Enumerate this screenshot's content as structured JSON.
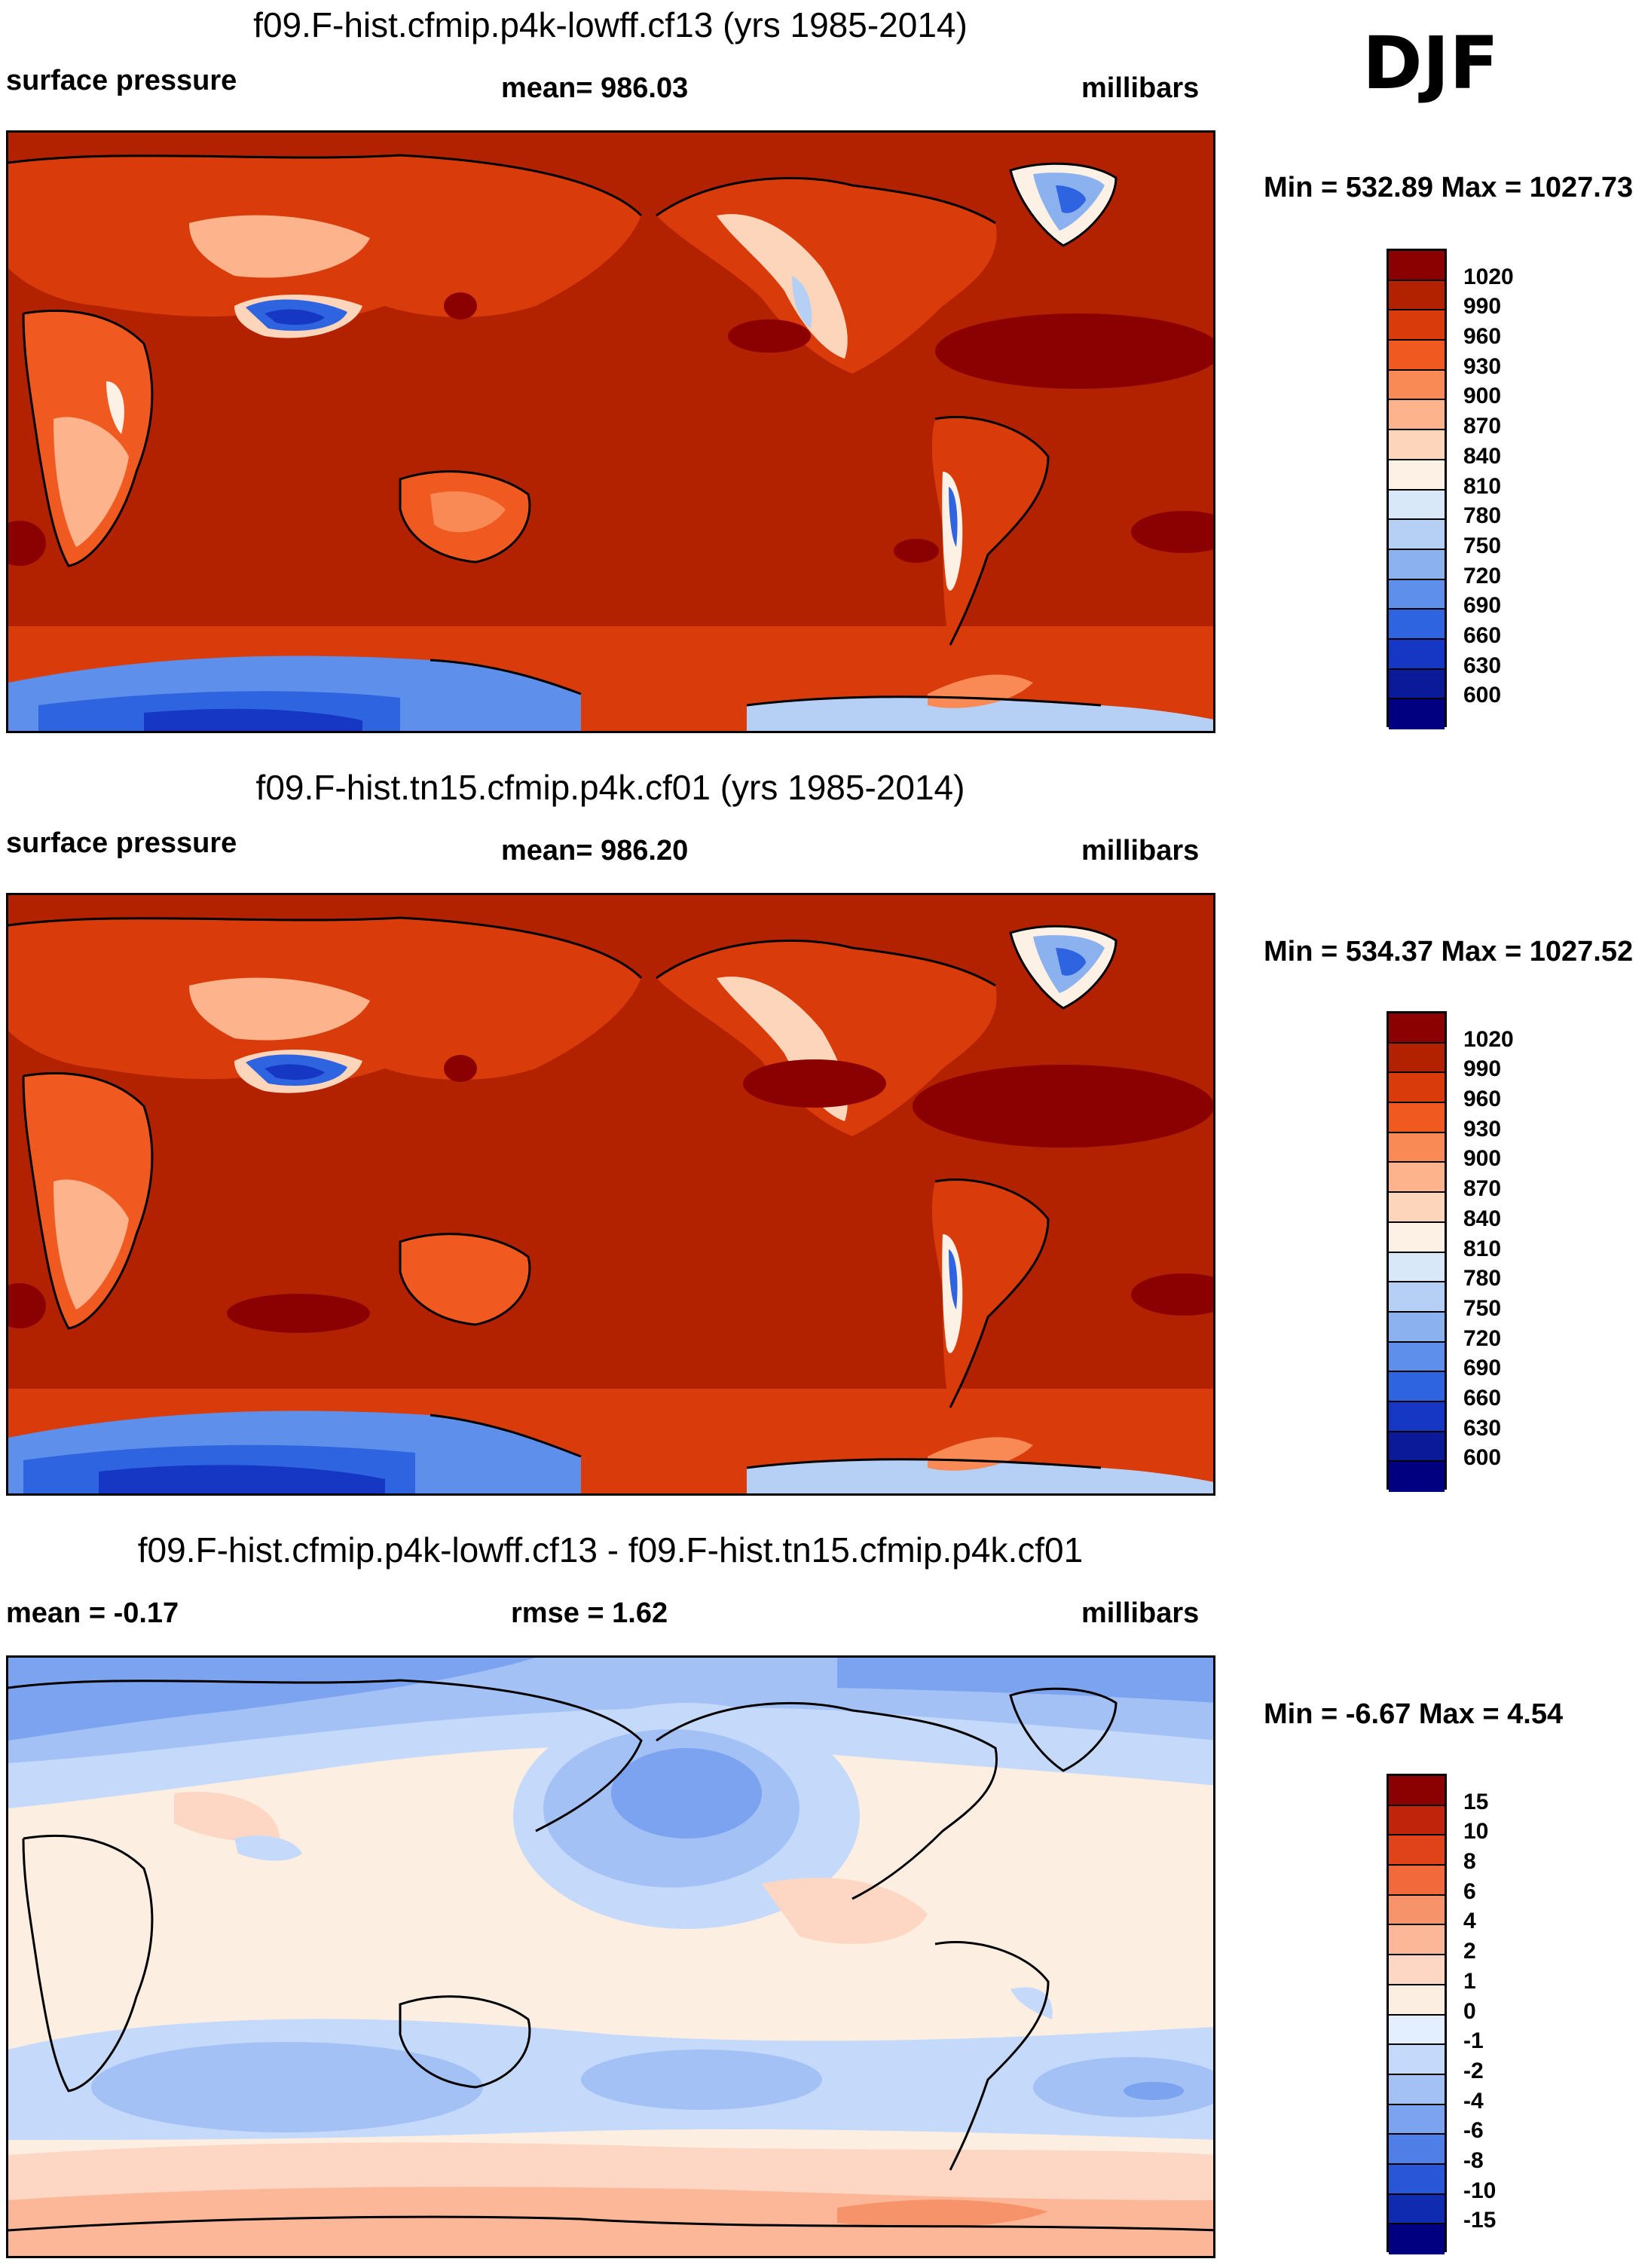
{
  "season": "DJF",
  "panels": [
    {
      "title": "f09.F-hist.cfmip.p4k-lowff.cf13 (yrs 1985-2014)",
      "left_label": "surface pressure",
      "center_label": "mean= 986.03",
      "units": "millibars",
      "minmax": "Min = 532.89 Max = 1027.73",
      "colorbar": {
        "labels": [
          "1020",
          "990",
          "960",
          "930",
          "900",
          "870",
          "840",
          "810",
          "780",
          "750",
          "720",
          "690",
          "660",
          "630",
          "600"
        ],
        "colors": [
          "#8b0000",
          "#b22200",
          "#d93b0a",
          "#f05a20",
          "#f98a55",
          "#fdb38c",
          "#fdd5bb",
          "#fdf0e4",
          "#d9e8f8",
          "#b6cff4",
          "#8cb1ef",
          "#5e8fea",
          "#2f64e0",
          "#1637c4",
          "#0b1a99",
          "#000080"
        ]
      },
      "variant": "full"
    },
    {
      "title": "f09.F-hist.tn15.cfmip.p4k.cf01 (yrs 1985-2014)",
      "left_label": "surface pressure",
      "center_label": "mean= 986.20",
      "units": "millibars",
      "minmax": "Min = 534.37 Max = 1027.52",
      "colorbar": {
        "labels": [
          "1020",
          "990",
          "960",
          "930",
          "900",
          "870",
          "840",
          "810",
          "780",
          "750",
          "720",
          "690",
          "660",
          "630",
          "600"
        ],
        "colors": [
          "#8b0000",
          "#b22200",
          "#d93b0a",
          "#f05a20",
          "#f98a55",
          "#fdb38c",
          "#fdd5bb",
          "#fdf0e4",
          "#d9e8f8",
          "#b6cff4",
          "#8cb1ef",
          "#5e8fea",
          "#2f64e0",
          "#1637c4",
          "#0b1a99",
          "#000080"
        ]
      },
      "variant": "full"
    },
    {
      "title": "f09.F-hist.cfmip.p4k-lowff.cf13 - f09.F-hist.tn15.cfmip.p4k.cf01",
      "left_label": "mean =  -0.17",
      "center_label": "rmse =   1.62",
      "units": "millibars",
      "minmax": "Min =  -6.67 Max =   4.54",
      "colorbar": {
        "labels": [
          "15",
          "10",
          "8",
          "6",
          "4",
          "2",
          "1",
          "0",
          "-1",
          "-2",
          "-4",
          "-6",
          "-8",
          "-10",
          "-15"
        ],
        "colors": [
          "#8b0000",
          "#c0240a",
          "#e0421a",
          "#f26a3c",
          "#f7936a",
          "#fbb798",
          "#fdd7c3",
          "#fdeee2",
          "#e3efff",
          "#c5dafa",
          "#a3c1f5",
          "#7ba3ef",
          "#4f7fe6",
          "#2856d6",
          "#0f2cb0",
          "#000080"
        ]
      },
      "variant": "diff"
    }
  ]
}
